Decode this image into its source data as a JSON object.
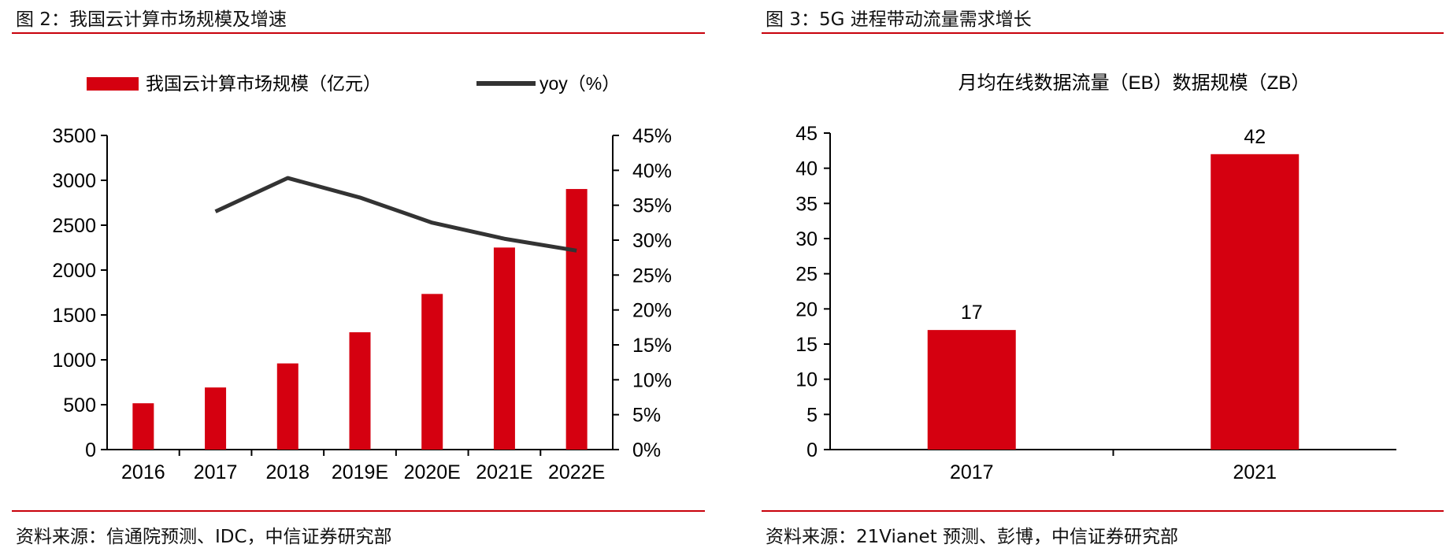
{
  "chart_data": [
    {
      "type": "bar",
      "figure_label": "图 2：我国云计算市场规模及增速",
      "source": "资料来源：信通院预测、IDC，中信证券研究部",
      "title": "",
      "categories": [
        "2016",
        "2017",
        "2018",
        "2019E",
        "2020E",
        "2021E",
        "2022E"
      ],
      "series": [
        {
          "name": "我国云计算市场规模（亿元）",
          "type": "bar",
          "axis": "left",
          "color": "#d50010",
          "values": [
            516,
            692,
            960,
            1307,
            1734,
            2251,
            2903
          ]
        },
        {
          "name": "yoy（%）",
          "type": "line",
          "axis": "right",
          "color": "#333333",
          "values": [
            null,
            34.1,
            38.9,
            36.1,
            32.5,
            30.2,
            28.5
          ]
        }
      ],
      "y_left": {
        "min": 0,
        "max": 3500,
        "ticks": [
          "0",
          "500",
          "1000",
          "1500",
          "2000",
          "2500",
          "3000",
          "3500"
        ]
      },
      "y_right": {
        "min": 0,
        "max": 45,
        "ticks": [
          "0%",
          "5%",
          "10%",
          "15%",
          "20%",
          "25%",
          "30%",
          "35%",
          "40%",
          "45%"
        ]
      },
      "legend_position": "top"
    },
    {
      "type": "bar",
      "figure_label": "图 3：5G 进程带动流量需求增长",
      "source": "资料来源：21Vianet 预测、彭博，中信证券研究部",
      "title": "月均在线数据流量（EB）数据规模（ZB）",
      "categories": [
        "2017",
        "2021"
      ],
      "values": [
        17,
        42
      ],
      "data_labels": [
        "17",
        "42"
      ],
      "color": "#d50010",
      "ylim": [
        0,
        45
      ],
      "y_ticks": [
        "0",
        "5",
        "10",
        "15",
        "20",
        "25",
        "30",
        "35",
        "40",
        "45"
      ]
    }
  ]
}
